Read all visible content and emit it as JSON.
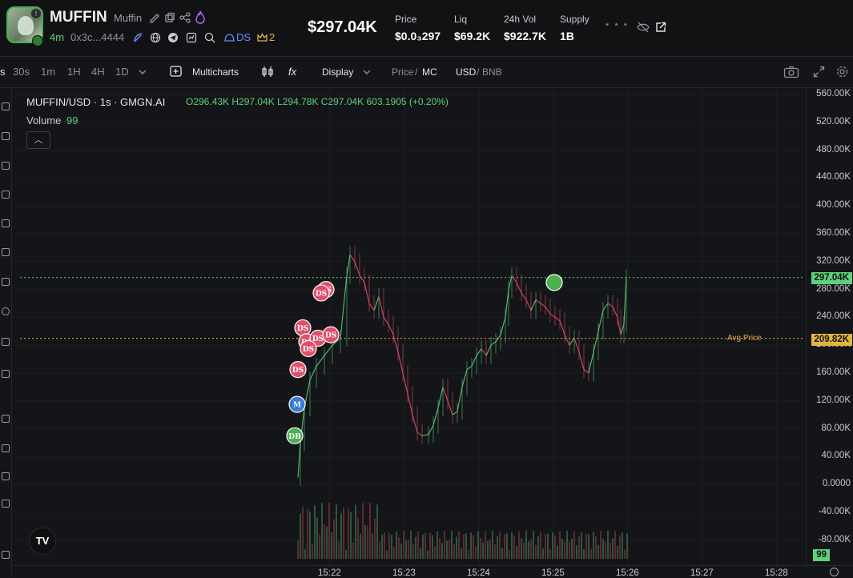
{
  "header": {
    "symbol": "MUFFIN",
    "name": "Muffin",
    "age": "4m",
    "address": "0x3c...4444",
    "ds_label": "DS",
    "crown_count": "2",
    "market_cap": "$297.04K",
    "stats": [
      {
        "label": "Price",
        "value": "$0.0₃297"
      },
      {
        "label": "Liq",
        "value": "$69.2K"
      },
      {
        "label": "24h Vol",
        "value": "$922.7K"
      },
      {
        "label": "Supply",
        "value": "1B"
      }
    ],
    "hidden_stat": "* * *"
  },
  "toolbar": {
    "intervals": [
      "s",
      "30s",
      "1m",
      "1H",
      "4H",
      "1D"
    ],
    "multicharts": "Multicharts",
    "fx": "fx",
    "display": "Display",
    "price_mode": "Price",
    "mc_mode": "MC",
    "usd_mode": "USD",
    "bnb_mode": "BNB"
  },
  "chart": {
    "legend_symbol": "MUFFIN/USD · 1s · GMGN.AI",
    "legend_ohlc": "O296.43K  H297.04K  L294.78K  C297.04K  603.1905 (+0.20%)",
    "volume_label": "Volume",
    "volume_value": "99",
    "current_price_label": "297.04K",
    "avg_price_label": "209.82K",
    "avg_text": "Avg Price",
    "volume_tag": "99",
    "price_ticks": [
      "560.00K",
      "520.00K",
      "480.00K",
      "440.00K",
      "400.00K",
      "360.00K",
      "320.00K",
      "280.00K",
      "240.00K",
      "200.00K",
      "160.00K",
      "120.00K",
      "80.00K",
      "40.00K",
      "0.0000",
      "-40.00K",
      "-80.00K"
    ],
    "time_ticks": [
      "15:22",
      "15:23",
      "15:24",
      "15:25",
      "15:26",
      "15:27",
      "15:28"
    ],
    "markers": [
      {
        "text": "DS",
        "color": "#e0506a"
      },
      {
        "text": "DS",
        "color": "#e0506a"
      },
      {
        "text": "DS",
        "color": "#e0506a"
      },
      {
        "text": "DS",
        "color": "#e0506a"
      },
      {
        "text": "DS",
        "color": "#e0506a"
      },
      {
        "text": "DS",
        "color": "#e0506a"
      },
      {
        "text": "DS",
        "color": "#e0506a"
      },
      {
        "text": "DS",
        "color": "#e0506a"
      },
      {
        "text": "M",
        "color": "#3a7bd5"
      },
      {
        "text": "DB",
        "color": "#4caf50"
      },
      {
        "text": "",
        "color": "#4caf50"
      }
    ]
  },
  "colors": {
    "up": "#5fd07c",
    "down": "#e0506a",
    "avg": "#e3b341"
  },
  "icons": [
    "edit-icon",
    "copy-icon",
    "share-icon",
    "flame-icon",
    "feather-icon",
    "globe-icon",
    "telegram-icon",
    "chart-icon",
    "search-icon",
    "hat-icon",
    "crown-icon",
    "eye-off-icon",
    "external-link-icon",
    "camera-icon",
    "expand-icon",
    "settings-icon",
    "chevron-down-icon",
    "plus-icon",
    "candles-icon",
    "tradingview-logo"
  ]
}
